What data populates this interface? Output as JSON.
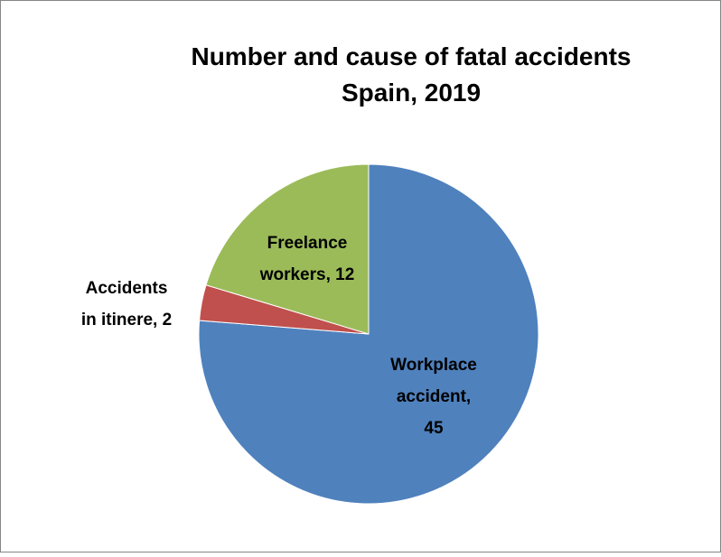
{
  "chart_data": {
    "type": "pie",
    "title": "Number and cause of fatal accidents",
    "subtitle": "Spain, 2019",
    "values": [
      45,
      2,
      12
    ],
    "labels": [
      [
        "Workplace",
        "accident,",
        "45"
      ],
      [
        "Accidents",
        "in itinere, 2"
      ],
      [
        "Freelance",
        "workers, 12"
      ]
    ],
    "colors": [
      "#4f81bd",
      "#c0504d",
      "#9bbb59"
    ],
    "start_angle": 90,
    "direction": "clockwise"
  }
}
